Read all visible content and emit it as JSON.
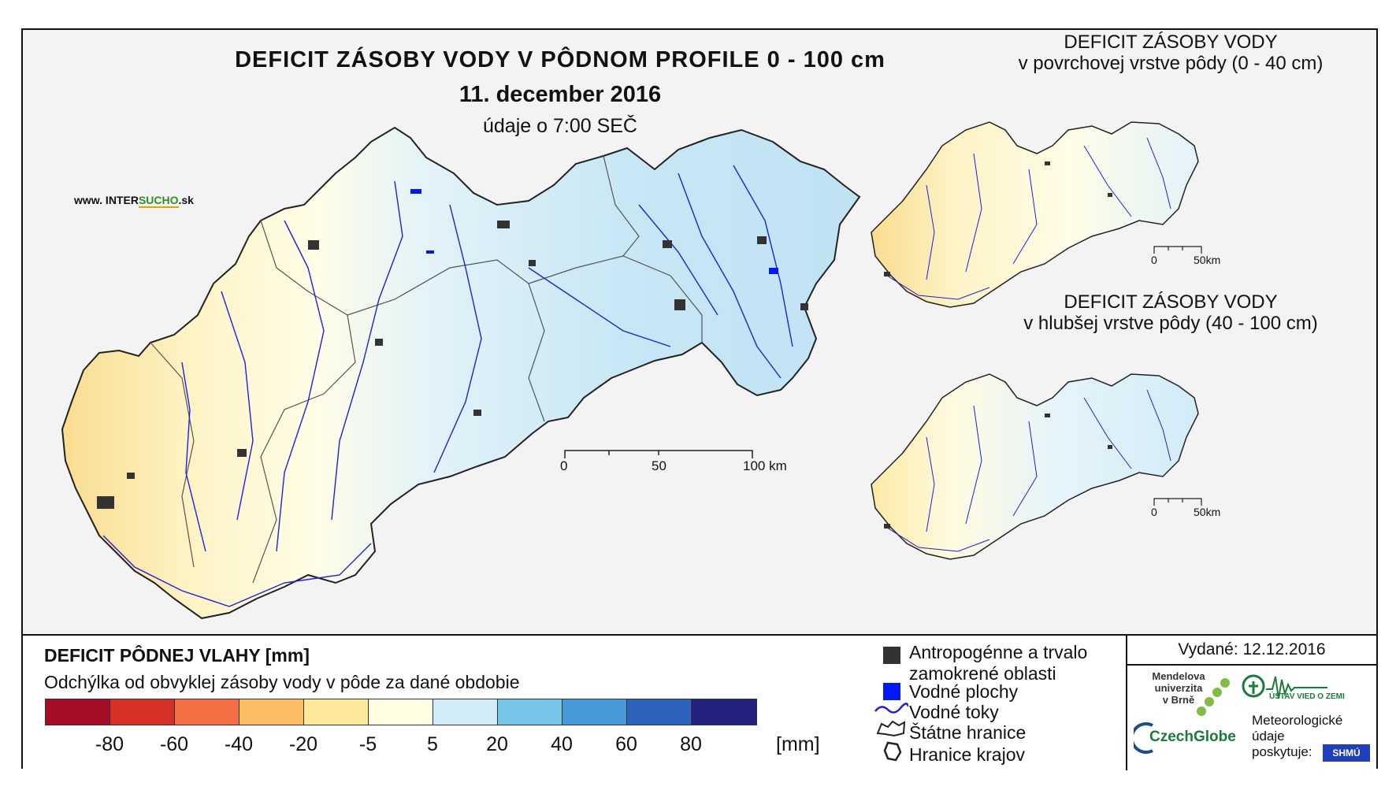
{
  "main": {
    "title": "DEFICIT ZÁSOBY VODY V PÔDNOM PROFILE 0 - 100 cm",
    "date": "11. december 2016",
    "time": "údaje o 7:00 SEČ",
    "website_prefix": "www. INTER",
    "website_brand": "SUCHO",
    "website_suffix": ".sk",
    "scale": {
      "labels": [
        "0",
        "50",
        "100 km"
      ]
    }
  },
  "inset_top": {
    "title_line1": "DEFICIT ZÁSOBY VODY",
    "title_line2": "v povrchovej vrstve pôdy (0 - 40 cm)",
    "scale": {
      "labels": [
        "0",
        "50km"
      ]
    }
  },
  "inset_bottom": {
    "title_line1": "DEFICIT ZÁSOBY VODY",
    "title_line2": "v hlubšej vrstve pôdy (40 - 100 cm)",
    "scale": {
      "labels": [
        "0",
        "50km"
      ]
    }
  },
  "legend": {
    "title": "DEFICIT PÔDNEJ VLAHY [mm]",
    "subtitle": "Odchýlka od obvyklej zásoby vody v pôde za dané obdobie",
    "colors": [
      "#a50d26",
      "#d73027",
      "#f46d43",
      "#fdbb63",
      "#fee89a",
      "#fffde2",
      "#d2ecf8",
      "#74c5e8",
      "#4698d6",
      "#2d62bd",
      "#23217f"
    ],
    "ticks": [
      "-80",
      "-60",
      "-40",
      "-20",
      "-5",
      "5",
      "20",
      "40",
      "60",
      "80"
    ],
    "unit": "[mm]"
  },
  "symbols": {
    "urban": "Antropogénne a trvalo",
    "urban_line2": "zamokrené oblasti",
    "water_bodies": "Vodné plochy",
    "streams": "Vodné toky",
    "state_border": "Štátne hranice",
    "region_border": "Hranice krajov",
    "colors": {
      "urban": "#333333",
      "water": "#0018ff",
      "stream": "#1f1fe0"
    }
  },
  "credits": {
    "issued": "Vydané: 12.12.2016",
    "mendel_line1": "Mendelova",
    "mendel_line2": "univerzita",
    "mendel_line3": "v Brně",
    "czechglobe": "CzechGlobe",
    "ustav": "ÚSTAV VIED O ZEMI",
    "meteo_line1": "Meteorologické",
    "meteo_line2": "údaje",
    "meteo_line3": "poskytuje:",
    "shmu": "SHMÚ"
  }
}
